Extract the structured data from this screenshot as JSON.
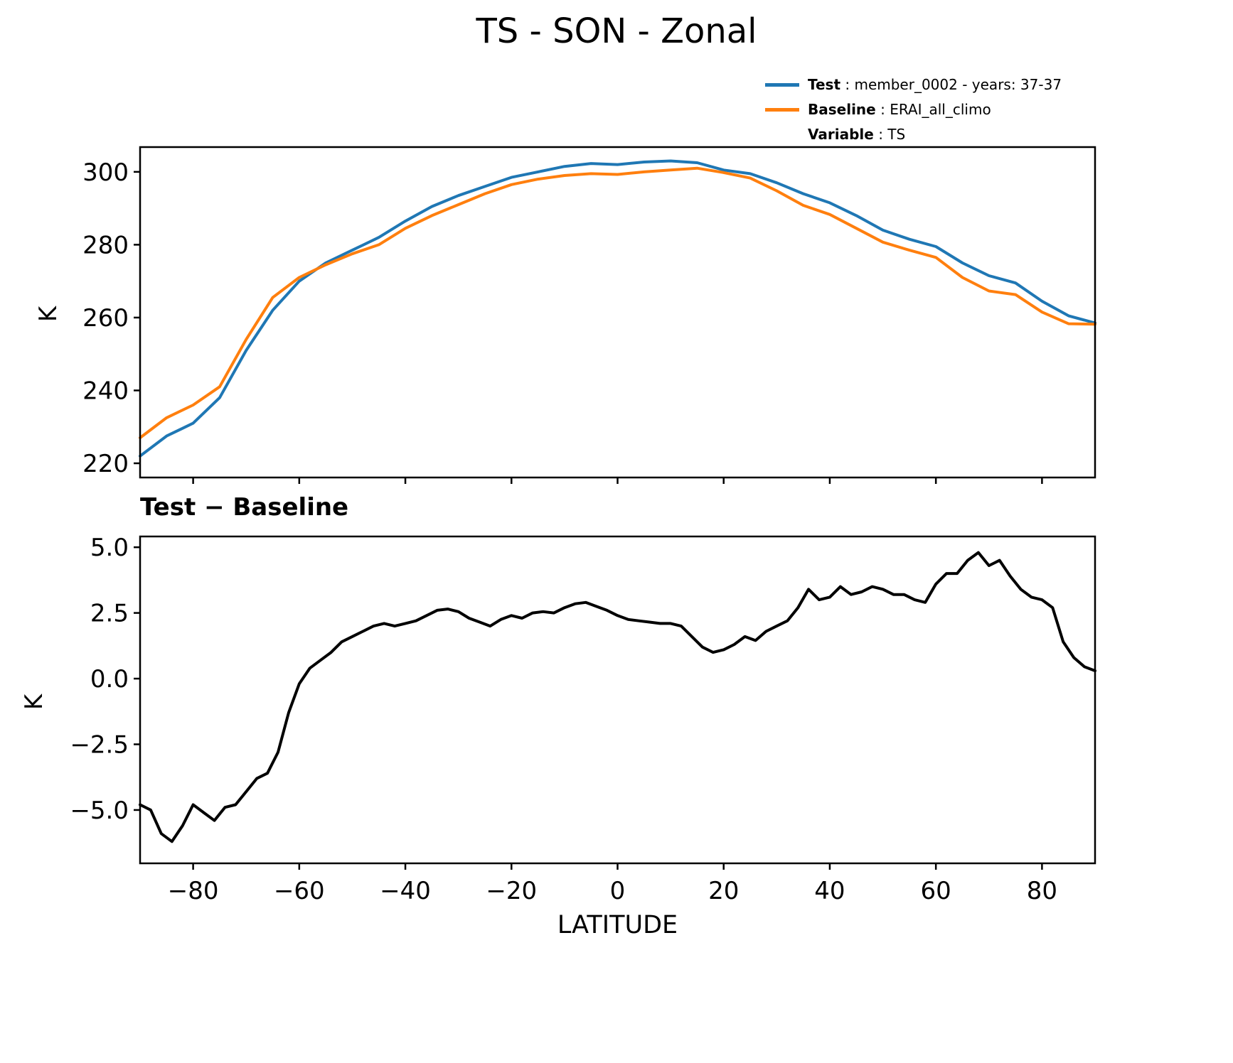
{
  "title": "TS - SON - Zonal",
  "legend": {
    "items": [
      {
        "label": "Test",
        "value": " : member_0002 - years: 37-37",
        "color": "#1f77b4"
      },
      {
        "label": "Baseline",
        "value": " : ERAI_all_climo",
        "color": "#ff7f0e"
      },
      {
        "label": "Variable",
        "value": " : TS",
        "color": ""
      }
    ]
  },
  "chart_data": [
    {
      "type": "line",
      "title": "",
      "xlabel": "",
      "ylabel": "K",
      "xlim": [
        -90,
        90
      ],
      "ylim": [
        216.1,
        306.8
      ],
      "grid": false,
      "legend_position": "upper right outside",
      "xticks": [
        -80,
        -60,
        -40,
        -20,
        0,
        20,
        40,
        60,
        80
      ],
      "xtick_labels": null,
      "yticks": [
        220,
        240,
        260,
        280,
        300
      ],
      "ytick_labels": [
        "220",
        "240",
        "260",
        "280",
        "300"
      ],
      "x": [
        -90,
        -85,
        -80,
        -75,
        -70,
        -65,
        -60,
        -55,
        -50,
        -45,
        -40,
        -35,
        -30,
        -25,
        -20,
        -15,
        -10,
        -5,
        0,
        5,
        10,
        15,
        20,
        25,
        30,
        35,
        40,
        45,
        50,
        55,
        60,
        65,
        70,
        75,
        80,
        85,
        90
      ],
      "series": [
        {
          "name": "Test",
          "color": "#1f77b4",
          "values": [
            222,
            227.5,
            231,
            238,
            251,
            262,
            270,
            275,
            278.5,
            282,
            286.5,
            290.5,
            293.5,
            296,
            298.5,
            300,
            301.5,
            302.3,
            302,
            302.7,
            303,
            302.5,
            300.5,
            299.5,
            297,
            294,
            291.5,
            288,
            284,
            281.5,
            279.5,
            275,
            271.5,
            269.5,
            264.5,
            260.5,
            258.5
          ]
        },
        {
          "name": "Baseline",
          "color": "#ff7f0e",
          "values": [
            227,
            232.5,
            236,
            241,
            254,
            265.5,
            271,
            274.5,
            277.5,
            280,
            284.5,
            288,
            291,
            294,
            296.5,
            298,
            299,
            299.5,
            299.3,
            300,
            300.5,
            301,
            299.8,
            298.3,
            294.8,
            290.8,
            288.3,
            284.5,
            280.7,
            278.5,
            276.5,
            271,
            267.3,
            266.3,
            261.5,
            258.3,
            258.2
          ]
        }
      ]
    },
    {
      "type": "line",
      "title": "Test − Baseline",
      "xlabel": "LATITUDE",
      "ylabel": "K",
      "xlim": [
        -90,
        90
      ],
      "ylim": [
        -7.03,
        5.41
      ],
      "grid": false,
      "xticks": [
        -80,
        -60,
        -40,
        -20,
        0,
        20,
        40,
        60,
        80
      ],
      "xtick_labels": [
        "−80",
        "−60",
        "−40",
        "−20",
        "0",
        "20",
        "40",
        "60",
        "80"
      ],
      "yticks": [
        5.0,
        2.5,
        0.0,
        -2.5,
        -5.0
      ],
      "ytick_labels": [
        "5.0",
        "2.5",
        "0.0",
        "−2.5",
        "−5.0"
      ],
      "x": [
        -90,
        -88,
        -86,
        -84,
        -82,
        -80,
        -78,
        -76,
        -74,
        -72,
        -70,
        -68,
        -66,
        -64,
        -62,
        -60,
        -58,
        -56,
        -54,
        -52,
        -50,
        -48,
        -46,
        -44,
        -42,
        -40,
        -38,
        -36,
        -34,
        -32,
        -30,
        -28,
        -26,
        -24,
        -22,
        -20,
        -18,
        -16,
        -14,
        -12,
        -10,
        -8,
        -6,
        -4,
        -2,
        0,
        2,
        4,
        6,
        8,
        10,
        12,
        14,
        16,
        18,
        20,
        22,
        24,
        26,
        28,
        30,
        32,
        34,
        36,
        38,
        40,
        42,
        44,
        46,
        48,
        50,
        52,
        54,
        56,
        58,
        60,
        62,
        64,
        66,
        68,
        70,
        72,
        74,
        76,
        78,
        80,
        82,
        84,
        86,
        88,
        90
      ],
      "series": [
        {
          "name": "Test − Baseline",
          "color": "#000000",
          "values": [
            -4.8,
            -5.0,
            -5.9,
            -6.2,
            -5.6,
            -4.8,
            -5.1,
            -5.4,
            -4.9,
            -4.8,
            -4.3,
            -3.8,
            -3.6,
            -2.8,
            -1.3,
            -0.2,
            0.4,
            0.7,
            1.0,
            1.4,
            1.6,
            1.8,
            2.0,
            2.1,
            2.0,
            2.1,
            2.2,
            2.4,
            2.6,
            2.65,
            2.55,
            2.3,
            2.15,
            2.0,
            2.25,
            2.4,
            2.3,
            2.5,
            2.55,
            2.5,
            2.7,
            2.85,
            2.9,
            2.75,
            2.6,
            2.4,
            2.25,
            2.2,
            2.15,
            2.1,
            2.1,
            2.0,
            1.6,
            1.2,
            1.0,
            1.1,
            1.3,
            1.6,
            1.45,
            1.8,
            2.0,
            2.2,
            2.7,
            3.4,
            3.0,
            3.1,
            3.5,
            3.2,
            3.3,
            3.5,
            3.4,
            3.2,
            3.2,
            3.0,
            2.9,
            3.6,
            4.0,
            4.0,
            4.5,
            4.8,
            4.3,
            4.5,
            3.9,
            3.4,
            3.1,
            3.0,
            2.7,
            1.4,
            0.8,
            0.45,
            0.3
          ]
        }
      ]
    }
  ]
}
